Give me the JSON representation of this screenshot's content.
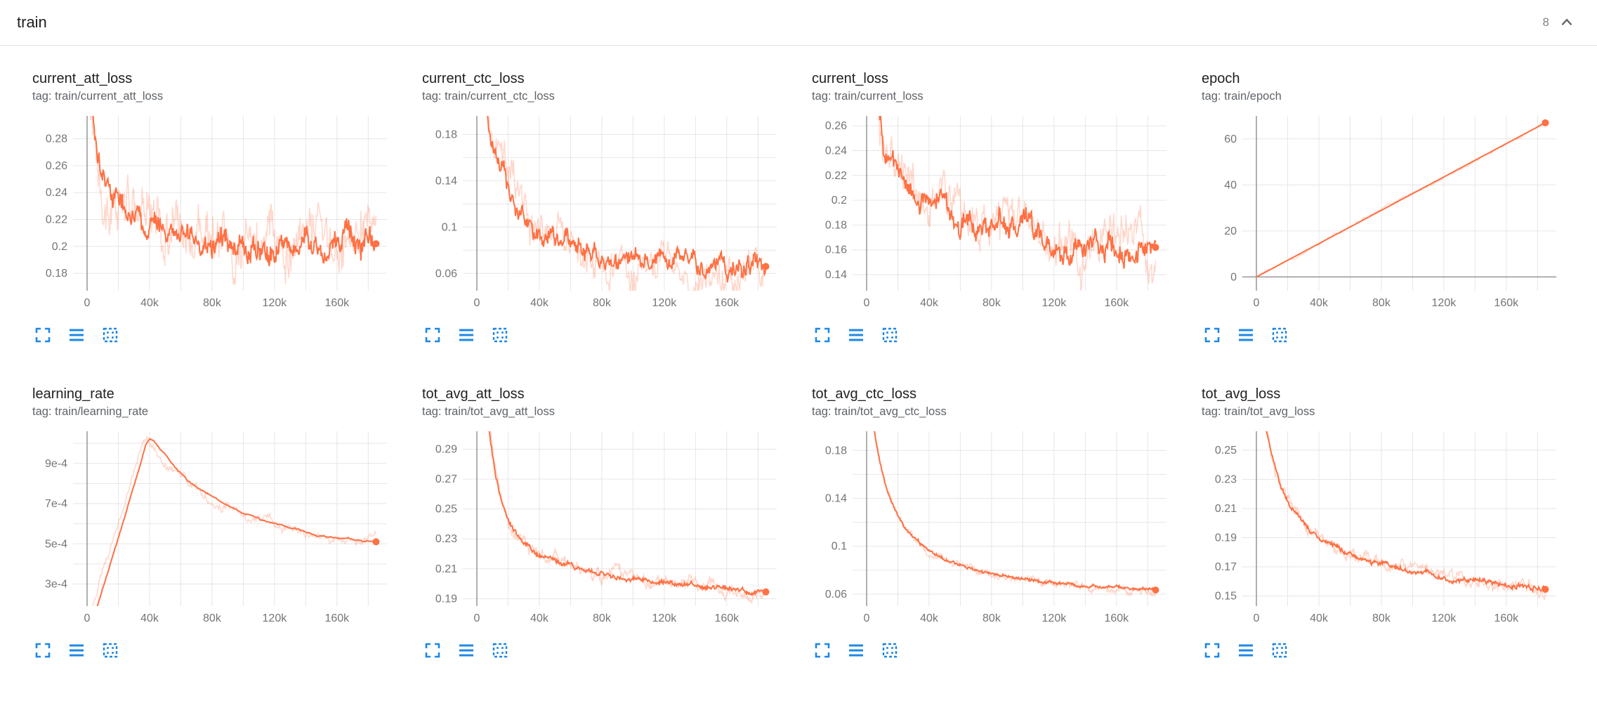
{
  "header": {
    "title": "train",
    "count": "8"
  },
  "colors": {
    "line": "#ff7043",
    "raw_opacity": 0.28,
    "grid": "#e6e6e6",
    "zero_line": "#8f8f8f",
    "tick_text": "#757575",
    "icon_blue": "#1e88e5",
    "chevron_gray": "#5f6368"
  },
  "toolbar_icons": [
    "maximize-icon",
    "data-table-icon",
    "fit-domain-icon"
  ],
  "x_axis": {
    "xlim": [
      -9000,
      192000
    ],
    "xticks": [
      {
        "v": 0,
        "label": "0"
      },
      {
        "v": 40000,
        "label": "40k"
      },
      {
        "v": 80000,
        "label": "80k"
      },
      {
        "v": 120000,
        "label": "120k"
      },
      {
        "v": 160000,
        "label": "160k"
      }
    ],
    "xgrid": [
      0,
      20000,
      40000,
      60000,
      80000,
      100000,
      120000,
      140000,
      160000,
      180000
    ]
  },
  "chart_data": [
    {
      "id": "current_att_loss",
      "type": "line",
      "title": "current_att_loss",
      "tag": "tag: train/current_att_loss",
      "ylim": [
        0.167,
        0.297
      ],
      "yticks": [
        {
          "v": 0.18,
          "label": "0.18"
        },
        {
          "v": 0.2,
          "label": "0.2"
        },
        {
          "v": 0.22,
          "label": "0.22"
        },
        {
          "v": 0.24,
          "label": "0.24"
        },
        {
          "v": 0.26,
          "label": "0.26"
        },
        {
          "v": 0.28,
          "label": "0.28"
        }
      ],
      "ygrid": [
        0.18,
        0.2,
        0.22,
        0.24,
        0.26,
        0.28
      ],
      "trend": [
        [
          1000,
          0.335
        ],
        [
          3000,
          0.31
        ],
        [
          5000,
          0.295
        ],
        [
          8000,
          0.27
        ],
        [
          12000,
          0.252
        ],
        [
          16000,
          0.242
        ],
        [
          20000,
          0.235
        ],
        [
          26000,
          0.228
        ],
        [
          32000,
          0.222
        ],
        [
          40000,
          0.216
        ],
        [
          50000,
          0.212
        ],
        [
          60000,
          0.209
        ],
        [
          70000,
          0.207
        ],
        [
          80000,
          0.206
        ],
        [
          95000,
          0.204
        ],
        [
          110000,
          0.202
        ],
        [
          130000,
          0.201
        ],
        [
          150000,
          0.2
        ],
        [
          170000,
          0.2
        ],
        [
          185000,
          0.202
        ]
      ],
      "noise_main": 0.01,
      "noise_raw": 0.019,
      "samples": 420
    },
    {
      "id": "current_ctc_loss",
      "type": "line",
      "title": "current_ctc_loss",
      "tag": "tag: train/current_ctc_loss",
      "ylim": [
        0.045,
        0.196
      ],
      "yticks": [
        {
          "v": 0.06,
          "label": "0.06"
        },
        {
          "v": 0.1,
          "label": "0.1"
        },
        {
          "v": 0.14,
          "label": "0.14"
        },
        {
          "v": 0.18,
          "label": "0.18"
        }
      ],
      "ygrid": [
        0.06,
        0.08,
        0.1,
        0.12,
        0.14,
        0.16,
        0.18
      ],
      "trend": [
        [
          1000,
          0.27
        ],
        [
          4000,
          0.225
        ],
        [
          8000,
          0.185
        ],
        [
          12000,
          0.16
        ],
        [
          16000,
          0.145
        ],
        [
          20000,
          0.13
        ],
        [
          26000,
          0.115
        ],
        [
          32000,
          0.105
        ],
        [
          40000,
          0.096
        ],
        [
          50000,
          0.089
        ],
        [
          60000,
          0.083
        ],
        [
          70000,
          0.079
        ],
        [
          80000,
          0.075
        ],
        [
          95000,
          0.071
        ],
        [
          110000,
          0.068
        ],
        [
          130000,
          0.066
        ],
        [
          150000,
          0.064
        ],
        [
          170000,
          0.064
        ],
        [
          185000,
          0.066
        ]
      ],
      "noise_main": 0.0085,
      "noise_raw": 0.016,
      "samples": 420
    },
    {
      "id": "current_loss",
      "type": "line",
      "title": "current_loss",
      "tag": "tag: train/current_loss",
      "ylim": [
        0.127,
        0.268
      ],
      "yticks": [
        {
          "v": 0.14,
          "label": "0.14"
        },
        {
          "v": 0.16,
          "label": "0.16"
        },
        {
          "v": 0.18,
          "label": "0.18"
        },
        {
          "v": 0.2,
          "label": "0.2"
        },
        {
          "v": 0.22,
          "label": "0.22"
        },
        {
          "v": 0.24,
          "label": "0.24"
        },
        {
          "v": 0.26,
          "label": "0.26"
        }
      ],
      "ygrid": [
        0.14,
        0.16,
        0.18,
        0.2,
        0.22,
        0.24,
        0.26
      ],
      "trend": [
        [
          1000,
          0.32
        ],
        [
          3000,
          0.3
        ],
        [
          5000,
          0.286
        ],
        [
          8000,
          0.263
        ],
        [
          12000,
          0.244
        ],
        [
          16000,
          0.232
        ],
        [
          20000,
          0.223
        ],
        [
          26000,
          0.214
        ],
        [
          32000,
          0.207
        ],
        [
          40000,
          0.2
        ],
        [
          50000,
          0.193
        ],
        [
          60000,
          0.188
        ],
        [
          70000,
          0.184
        ],
        [
          80000,
          0.181
        ],
        [
          95000,
          0.176
        ],
        [
          110000,
          0.171
        ],
        [
          130000,
          0.166
        ],
        [
          150000,
          0.163
        ],
        [
          170000,
          0.161
        ],
        [
          185000,
          0.162
        ]
      ],
      "noise_main": 0.0095,
      "noise_raw": 0.018,
      "samples": 420
    },
    {
      "id": "epoch",
      "type": "line",
      "title": "epoch",
      "tag": "tag: train/epoch",
      "ylim": [
        -6,
        70
      ],
      "yticks": [
        {
          "v": 0,
          "label": "0"
        },
        {
          "v": 20,
          "label": "20"
        },
        {
          "v": 40,
          "label": "40"
        },
        {
          "v": 60,
          "label": "60"
        }
      ],
      "ygrid": [
        0,
        20,
        40,
        60
      ],
      "trend": [
        [
          0,
          0
        ],
        [
          185000,
          67
        ]
      ],
      "noise_main": 0,
      "noise_raw": 0.7,
      "samples": 150
    },
    {
      "id": "learning_rate",
      "type": "line",
      "title": "learning_rate",
      "tag": "tag: train/learning_rate",
      "ylim": [
        0.00019,
        0.00106
      ],
      "yticks": [
        {
          "v": 0.0003,
          "label": "3e-4"
        },
        {
          "v": 0.0005,
          "label": "5e-4"
        },
        {
          "v": 0.0007,
          "label": "7e-4"
        },
        {
          "v": 0.0009,
          "label": "9e-4"
        }
      ],
      "ygrid": [
        0.0003,
        0.0004,
        0.0005,
        0.0006,
        0.0007,
        0.0008,
        0.0009,
        0.001
      ],
      "trend": [
        [
          0,
          2e-05
        ],
        [
          5000,
          0.00015
        ],
        [
          10000,
          0.00028
        ],
        [
          15000,
          0.0004
        ],
        [
          20000,
          0.00053
        ],
        [
          25000,
          0.00066
        ],
        [
          30000,
          0.00079
        ],
        [
          35000,
          0.00092
        ],
        [
          38000,
          0.001
        ],
        [
          40000,
          0.00102
        ],
        [
          43000,
          0.00101
        ],
        [
          48000,
          0.00096
        ],
        [
          55000,
          0.00089
        ],
        [
          65000,
          0.00081
        ],
        [
          75000,
          0.00076
        ],
        [
          85000,
          0.00071
        ],
        [
          100000,
          0.00065
        ],
        [
          115000,
          0.00061
        ],
        [
          130000,
          0.00058
        ],
        [
          145000,
          0.00055
        ],
        [
          160000,
          0.00053
        ],
        [
          175000,
          0.00052
        ],
        [
          185000,
          0.00051
        ]
      ],
      "noise_main": 4e-06,
      "noise_raw": 2.2e-05,
      "raw_lead": 3000,
      "samples": 300
    },
    {
      "id": "tot_avg_att_loss",
      "type": "line",
      "title": "tot_avg_att_loss",
      "tag": "tag: train/tot_avg_att_loss",
      "ylim": [
        0.185,
        0.302
      ],
      "yticks": [
        {
          "v": 0.19,
          "label": "0.19"
        },
        {
          "v": 0.21,
          "label": "0.21"
        },
        {
          "v": 0.23,
          "label": "0.23"
        },
        {
          "v": 0.25,
          "label": "0.25"
        },
        {
          "v": 0.27,
          "label": "0.27"
        },
        {
          "v": 0.29,
          "label": "0.29"
        }
      ],
      "ygrid": [
        0.19,
        0.21,
        0.23,
        0.25,
        0.27,
        0.29
      ],
      "trend": [
        [
          6000,
          0.315
        ],
        [
          8000,
          0.301
        ],
        [
          10000,
          0.286
        ],
        [
          12000,
          0.273
        ],
        [
          14000,
          0.263
        ],
        [
          16000,
          0.2555
        ],
        [
          18000,
          0.249
        ],
        [
          20000,
          0.2435
        ],
        [
          24000,
          0.2365
        ],
        [
          28000,
          0.2315
        ],
        [
          32000,
          0.227
        ],
        [
          36000,
          0.2235
        ],
        [
          40000,
          0.2205
        ],
        [
          46000,
          0.2172
        ],
        [
          52000,
          0.2146
        ],
        [
          58000,
          0.2124
        ],
        [
          64000,
          0.2106
        ],
        [
          70000,
          0.2092
        ],
        [
          78000,
          0.2074
        ],
        [
          86000,
          0.2059
        ],
        [
          94000,
          0.2046
        ],
        [
          102000,
          0.2035
        ],
        [
          112000,
          0.2023
        ],
        [
          122000,
          0.2012
        ],
        [
          132000,
          0.2
        ],
        [
          142000,
          0.1985
        ],
        [
          152000,
          0.1975
        ],
        [
          162000,
          0.1965
        ],
        [
          172000,
          0.1955
        ],
        [
          185000,
          0.1945
        ]
      ],
      "noise_main": 0.0016,
      "noise_raw": 0.0042,
      "samples": 420
    },
    {
      "id": "tot_avg_ctc_loss",
      "type": "line",
      "title": "tot_avg_ctc_loss",
      "tag": "tag: train/tot_avg_ctc_loss",
      "ylim": [
        0.05,
        0.196
      ],
      "yticks": [
        {
          "v": 0.06,
          "label": "0.06"
        },
        {
          "v": 0.1,
          "label": "0.1"
        },
        {
          "v": 0.14,
          "label": "0.14"
        },
        {
          "v": 0.18,
          "label": "0.18"
        }
      ],
      "ygrid": [
        0.06,
        0.08,
        0.1,
        0.12,
        0.14,
        0.16,
        0.18
      ],
      "trend": [
        [
          4000,
          0.205
        ],
        [
          6000,
          0.188
        ],
        [
          8000,
          0.173
        ],
        [
          10000,
          0.161
        ],
        [
          12000,
          0.1515
        ],
        [
          14000,
          0.1435
        ],
        [
          16000,
          0.137
        ],
        [
          18000,
          0.1312
        ],
        [
          20000,
          0.126
        ],
        [
          24000,
          0.1172
        ],
        [
          28000,
          0.1105
        ],
        [
          32000,
          0.105
        ],
        [
          36000,
          0.1003
        ],
        [
          40000,
          0.0962
        ],
        [
          46000,
          0.0913
        ],
        [
          52000,
          0.0874
        ],
        [
          58000,
          0.0843
        ],
        [
          64000,
          0.0818
        ],
        [
          70000,
          0.0797
        ],
        [
          78000,
          0.0774
        ],
        [
          86000,
          0.0754
        ],
        [
          94000,
          0.0737
        ],
        [
          102000,
          0.0722
        ],
        [
          112000,
          0.0706
        ],
        [
          122000,
          0.0692
        ],
        [
          132000,
          0.068
        ],
        [
          142000,
          0.0669
        ],
        [
          152000,
          0.0659
        ],
        [
          162000,
          0.0651
        ],
        [
          172000,
          0.0643
        ],
        [
          185000,
          0.0634
        ]
      ],
      "noise_main": 0.0013,
      "noise_raw": 0.0032,
      "samples": 420
    },
    {
      "id": "tot_avg_loss",
      "type": "line",
      "title": "tot_avg_loss",
      "tag": "tag: train/tot_avg_loss",
      "ylim": [
        0.143,
        0.263
      ],
      "yticks": [
        {
          "v": 0.15,
          "label": "0.15"
        },
        {
          "v": 0.17,
          "label": "0.17"
        },
        {
          "v": 0.19,
          "label": "0.19"
        },
        {
          "v": 0.21,
          "label": "0.21"
        },
        {
          "v": 0.23,
          "label": "0.23"
        },
        {
          "v": 0.25,
          "label": "0.25"
        }
      ],
      "ygrid": [
        0.15,
        0.17,
        0.19,
        0.21,
        0.23,
        0.25
      ],
      "trend": [
        [
          5000,
          0.272
        ],
        [
          7000,
          0.26
        ],
        [
          9000,
          0.2495
        ],
        [
          11000,
          0.2405
        ],
        [
          13000,
          0.233
        ],
        [
          15000,
          0.2265
        ],
        [
          18000,
          0.2195
        ],
        [
          21000,
          0.2135
        ],
        [
          25000,
          0.207
        ],
        [
          29000,
          0.2015
        ],
        [
          33000,
          0.1968
        ],
        [
          37000,
          0.1928
        ],
        [
          42000,
          0.1887
        ],
        [
          48000,
          0.1848
        ],
        [
          54000,
          0.1816
        ],
        [
          60000,
          0.1789
        ],
        [
          66000,
          0.1766
        ],
        [
          74000,
          0.1739
        ],
        [
          82000,
          0.1716
        ],
        [
          90000,
          0.1697
        ],
        [
          100000,
          0.1676
        ],
        [
          110000,
          0.1658
        ],
        [
          120000,
          0.163
        ],
        [
          130000,
          0.1613
        ],
        [
          140000,
          0.1598
        ],
        [
          150000,
          0.1585
        ],
        [
          160000,
          0.1572
        ],
        [
          170000,
          0.156
        ],
        [
          178000,
          0.1551
        ],
        [
          185000,
          0.1545
        ]
      ],
      "noise_main": 0.0017,
      "noise_raw": 0.0042,
      "samples": 420
    }
  ]
}
